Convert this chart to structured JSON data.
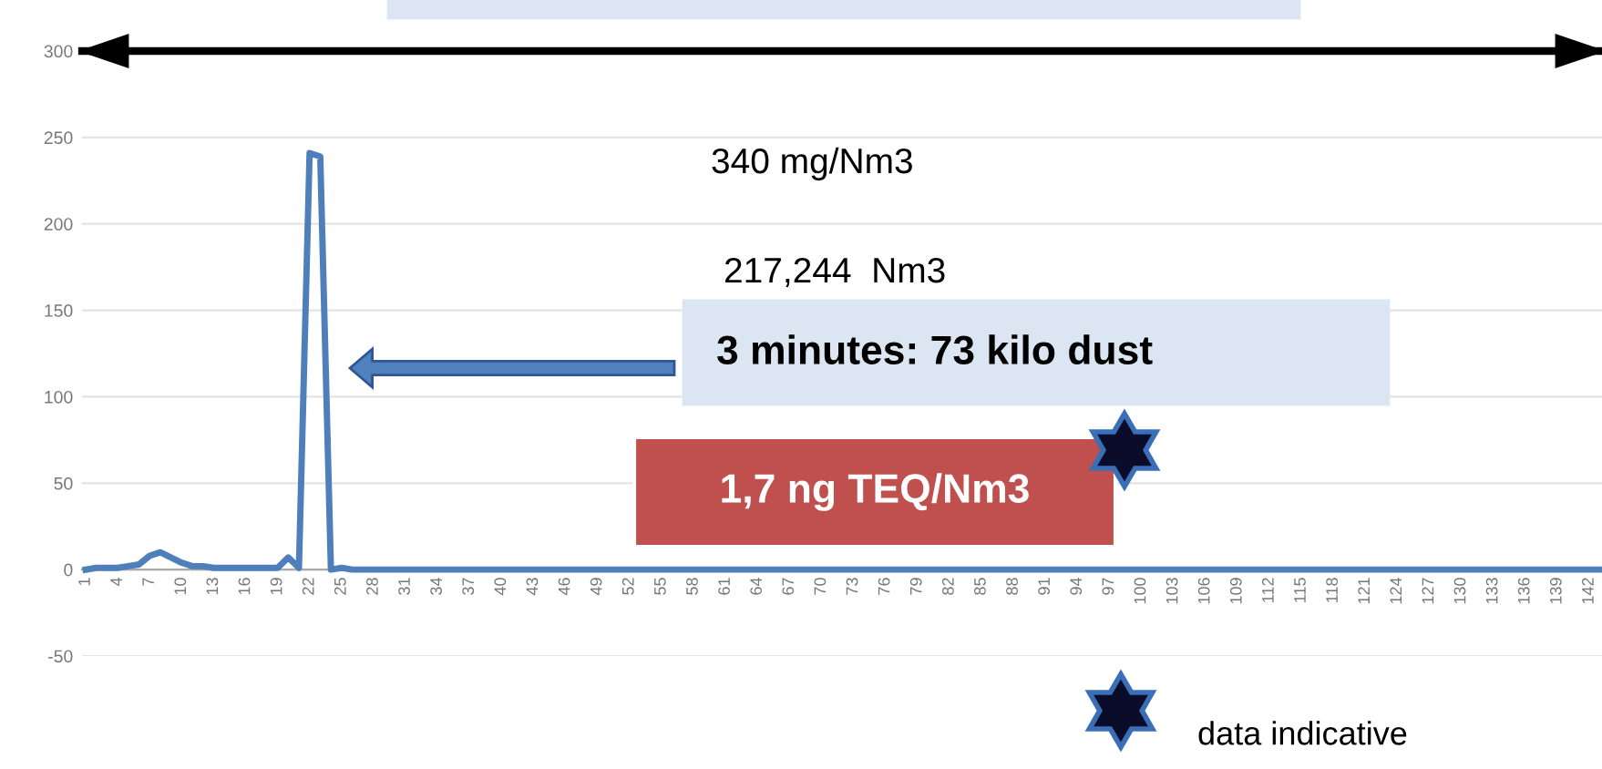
{
  "chart_data": {
    "type": "line",
    "categories": [
      "1",
      null,
      null,
      "4",
      null,
      null,
      "7",
      null,
      null,
      "10",
      null,
      null,
      "13",
      null,
      null,
      "16",
      null,
      null,
      "19",
      null,
      null,
      "22",
      null,
      null,
      "25",
      null,
      null,
      "28",
      null,
      null,
      "31",
      null,
      null,
      "34",
      null,
      null,
      "37",
      null,
      null,
      "40",
      null,
      null,
      "43",
      null,
      null,
      "46",
      null,
      null,
      "49",
      null,
      null,
      "52",
      null,
      null,
      "55",
      null,
      null,
      "58",
      null,
      null,
      "61",
      null,
      null,
      "64",
      null,
      null,
      "67",
      null,
      null,
      "70",
      null,
      null,
      "73",
      null,
      null,
      "76",
      null,
      null,
      "79",
      null,
      null,
      "82",
      null,
      null,
      "85",
      null,
      null,
      "88",
      null,
      null,
      "91",
      null,
      null,
      "94",
      null,
      null,
      "97",
      null,
      null,
      "100",
      null,
      null,
      "103",
      null,
      null,
      "106",
      null,
      null,
      "109",
      null,
      null,
      "112",
      null,
      null,
      "115",
      null,
      null,
      "118",
      null,
      null,
      "121",
      null,
      null,
      "124",
      null,
      null,
      "127",
      null,
      null,
      "130",
      null,
      null,
      "133",
      null,
      null,
      "136",
      null,
      null,
      "139",
      null,
      null,
      "142",
      null
    ],
    "series": [
      {
        "color": "#4f7fba",
        "values": [
          0,
          1,
          1,
          1,
          2,
          3,
          8,
          10,
          7,
          4,
          2,
          2,
          1,
          1,
          1,
          1,
          1,
          1,
          1,
          7,
          1,
          241,
          239,
          0,
          1,
          0,
          0,
          0,
          0,
          0,
          0,
          0,
          0,
          0,
          0,
          0,
          0,
          0,
          0,
          0,
          0,
          0,
          0,
          0,
          0,
          0,
          0,
          0,
          0,
          0,
          0,
          0,
          0,
          0,
          0,
          0,
          0,
          0,
          0,
          0,
          0,
          0,
          0,
          0,
          0,
          0,
          0,
          0,
          0,
          0,
          0,
          0,
          0,
          0,
          0,
          0,
          0,
          0,
          0,
          0,
          0,
          0,
          0,
          0,
          0,
          0,
          0,
          0,
          0,
          0,
          0,
          0,
          0,
          0,
          0,
          0,
          0,
          0,
          0,
          0,
          0,
          0,
          0,
          0,
          0,
          0,
          0,
          0,
          0,
          0,
          0,
          0,
          0,
          0,
          0,
          0,
          0,
          0,
          0,
          0,
          0,
          0,
          0,
          0,
          0,
          0,
          0,
          0,
          0,
          0,
          0,
          0,
          0,
          0,
          0,
          0,
          0,
          0,
          0,
          0,
          0,
          0,
          0
        ]
      }
    ],
    "ylim": [
      -50,
      300
    ],
    "ref_lines": [
      {
        "axis": "y",
        "value": 300,
        "color": "#000000",
        "line_style": "solid"
      }
    ],
    "yticks": [
      -50,
      0,
      50,
      100,
      150,
      200,
      250,
      300
    ],
    "grid": "y",
    "marker": "none",
    "line_style": "solid",
    "annotations": [
      "340 mg/Nm3",
      "217,244  Nm3",
      "3 minutes: 73 kilo dust",
      "1,7 ng TEQ/Nm3",
      "data indicative"
    ]
  }
}
